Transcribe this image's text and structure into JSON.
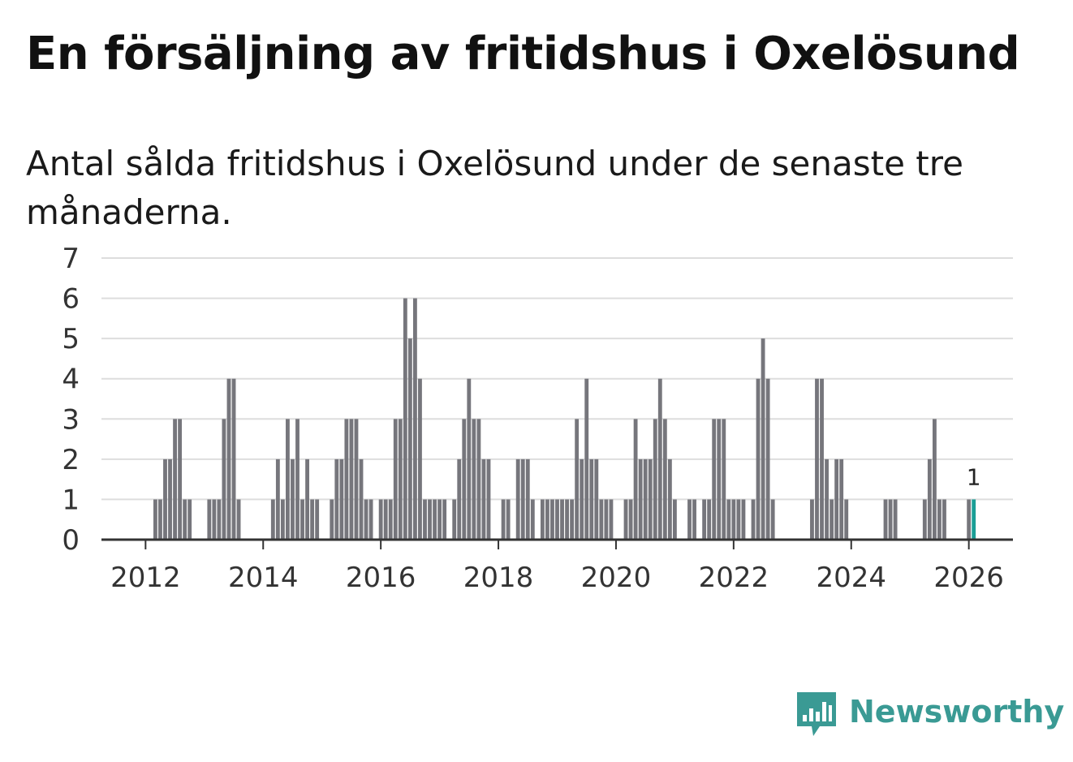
{
  "title": "En försäljning av fritidshus i Oxelösund",
  "subtitle": "Antal sålda fritidshus i Oxelösund under de senaste tre månaderna.",
  "brand": {
    "name": "Newsworthy",
    "color": "#3a9a94",
    "icon": "newsworthy-logo-icon"
  },
  "colors": {
    "bar": "#76767c",
    "highlight": "#1a9e96",
    "grid": "#dddddd",
    "axis": "#333333"
  },
  "chart_data": {
    "type": "bar",
    "title": "En försäljning av fritidshus i Oxelösund",
    "subtitle": "Antal sålda fritidshus i Oxelösund under de senaste tre månaderna.",
    "xlabel": "",
    "ylabel": "",
    "x_axis": "monthly",
    "xlim": [
      "2011-04",
      "2026-10"
    ],
    "ylim": [
      0,
      7
    ],
    "yticks": [
      0,
      1,
      2,
      3,
      4,
      5,
      6,
      7
    ],
    "xticks": [
      "2012",
      "2014",
      "2016",
      "2018",
      "2020",
      "2022",
      "2024",
      "2026"
    ],
    "grid": true,
    "legend": "none",
    "highlight_month": "2026-02",
    "highlight_label": "1",
    "series": [
      {
        "values": [
          {
            "month": "2012-03",
            "value": 1
          },
          {
            "month": "2012-04",
            "value": 1
          },
          {
            "month": "2012-05",
            "value": 2
          },
          {
            "month": "2012-06",
            "value": 2
          },
          {
            "month": "2012-07",
            "value": 3
          },
          {
            "month": "2012-08",
            "value": 3
          },
          {
            "month": "2012-09",
            "value": 1
          },
          {
            "month": "2012-10",
            "value": 1
          },
          {
            "month": "2013-02",
            "value": 1
          },
          {
            "month": "2013-03",
            "value": 1
          },
          {
            "month": "2013-04",
            "value": 1
          },
          {
            "month": "2013-05",
            "value": 3
          },
          {
            "month": "2013-06",
            "value": 4
          },
          {
            "month": "2013-07",
            "value": 4
          },
          {
            "month": "2013-08",
            "value": 1
          },
          {
            "month": "2014-03",
            "value": 1
          },
          {
            "month": "2014-04",
            "value": 2
          },
          {
            "month": "2014-05",
            "value": 1
          },
          {
            "month": "2014-06",
            "value": 3
          },
          {
            "month": "2014-07",
            "value": 2
          },
          {
            "month": "2014-08",
            "value": 3
          },
          {
            "month": "2014-09",
            "value": 1
          },
          {
            "month": "2014-10",
            "value": 2
          },
          {
            "month": "2014-11",
            "value": 1
          },
          {
            "month": "2014-12",
            "value": 1
          },
          {
            "month": "2015-03",
            "value": 1
          },
          {
            "month": "2015-04",
            "value": 2
          },
          {
            "month": "2015-05",
            "value": 2
          },
          {
            "month": "2015-06",
            "value": 3
          },
          {
            "month": "2015-07",
            "value": 3
          },
          {
            "month": "2015-08",
            "value": 3
          },
          {
            "month": "2015-09",
            "value": 2
          },
          {
            "month": "2015-10",
            "value": 1
          },
          {
            "month": "2015-11",
            "value": 1
          },
          {
            "month": "2016-01",
            "value": 1
          },
          {
            "month": "2016-02",
            "value": 1
          },
          {
            "month": "2016-03",
            "value": 1
          },
          {
            "month": "2016-04",
            "value": 3
          },
          {
            "month": "2016-05",
            "value": 3
          },
          {
            "month": "2016-06",
            "value": 6
          },
          {
            "month": "2016-07",
            "value": 5
          },
          {
            "month": "2016-08",
            "value": 6
          },
          {
            "month": "2016-09",
            "value": 4
          },
          {
            "month": "2016-10",
            "value": 1
          },
          {
            "month": "2016-11",
            "value": 1
          },
          {
            "month": "2016-12",
            "value": 1
          },
          {
            "month": "2017-01",
            "value": 1
          },
          {
            "month": "2017-02",
            "value": 1
          },
          {
            "month": "2017-04",
            "value": 1
          },
          {
            "month": "2017-05",
            "value": 2
          },
          {
            "month": "2017-06",
            "value": 3
          },
          {
            "month": "2017-07",
            "value": 4
          },
          {
            "month": "2017-08",
            "value": 3
          },
          {
            "month": "2017-09",
            "value": 3
          },
          {
            "month": "2017-10",
            "value": 2
          },
          {
            "month": "2017-11",
            "value": 2
          },
          {
            "month": "2018-02",
            "value": 1
          },
          {
            "month": "2018-03",
            "value": 1
          },
          {
            "month": "2018-05",
            "value": 2
          },
          {
            "month": "2018-06",
            "value": 2
          },
          {
            "month": "2018-07",
            "value": 2
          },
          {
            "month": "2018-08",
            "value": 1
          },
          {
            "month": "2018-10",
            "value": 1
          },
          {
            "month": "2018-11",
            "value": 1
          },
          {
            "month": "2018-12",
            "value": 1
          },
          {
            "month": "2019-01",
            "value": 1
          },
          {
            "month": "2019-02",
            "value": 1
          },
          {
            "month": "2019-03",
            "value": 1
          },
          {
            "month": "2019-04",
            "value": 1
          },
          {
            "month": "2019-05",
            "value": 3
          },
          {
            "month": "2019-06",
            "value": 2
          },
          {
            "month": "2019-07",
            "value": 4
          },
          {
            "month": "2019-08",
            "value": 2
          },
          {
            "month": "2019-09",
            "value": 2
          },
          {
            "month": "2019-10",
            "value": 1
          },
          {
            "month": "2019-11",
            "value": 1
          },
          {
            "month": "2019-12",
            "value": 1
          },
          {
            "month": "2020-03",
            "value": 1
          },
          {
            "month": "2020-04",
            "value": 1
          },
          {
            "month": "2020-05",
            "value": 3
          },
          {
            "month": "2020-06",
            "value": 2
          },
          {
            "month": "2020-07",
            "value": 2
          },
          {
            "month": "2020-08",
            "value": 2
          },
          {
            "month": "2020-09",
            "value": 3
          },
          {
            "month": "2020-10",
            "value": 4
          },
          {
            "month": "2020-11",
            "value": 3
          },
          {
            "month": "2020-12",
            "value": 2
          },
          {
            "month": "2021-01",
            "value": 1
          },
          {
            "month": "2021-04",
            "value": 1
          },
          {
            "month": "2021-05",
            "value": 1
          },
          {
            "month": "2021-07",
            "value": 1
          },
          {
            "month": "2021-08",
            "value": 1
          },
          {
            "month": "2021-09",
            "value": 3
          },
          {
            "month": "2021-10",
            "value": 3
          },
          {
            "month": "2021-11",
            "value": 3
          },
          {
            "month": "2021-12",
            "value": 1
          },
          {
            "month": "2022-01",
            "value": 1
          },
          {
            "month": "2022-02",
            "value": 1
          },
          {
            "month": "2022-03",
            "value": 1
          },
          {
            "month": "2022-05",
            "value": 1
          },
          {
            "month": "2022-06",
            "value": 4
          },
          {
            "month": "2022-07",
            "value": 5
          },
          {
            "month": "2022-08",
            "value": 4
          },
          {
            "month": "2022-09",
            "value": 1
          },
          {
            "month": "2023-05",
            "value": 1
          },
          {
            "month": "2023-06",
            "value": 4
          },
          {
            "month": "2023-07",
            "value": 4
          },
          {
            "month": "2023-08",
            "value": 2
          },
          {
            "month": "2023-09",
            "value": 1
          },
          {
            "month": "2023-10",
            "value": 2
          },
          {
            "month": "2023-11",
            "value": 2
          },
          {
            "month": "2023-12",
            "value": 1
          },
          {
            "month": "2024-08",
            "value": 1
          },
          {
            "month": "2024-09",
            "value": 1
          },
          {
            "month": "2024-10",
            "value": 1
          },
          {
            "month": "2025-04",
            "value": 1
          },
          {
            "month": "2025-05",
            "value": 2
          },
          {
            "month": "2025-06",
            "value": 3
          },
          {
            "month": "2025-07",
            "value": 1
          },
          {
            "month": "2025-08",
            "value": 1
          },
          {
            "month": "2026-01",
            "value": 1
          },
          {
            "month": "2026-02",
            "value": 1
          }
        ]
      }
    ]
  }
}
